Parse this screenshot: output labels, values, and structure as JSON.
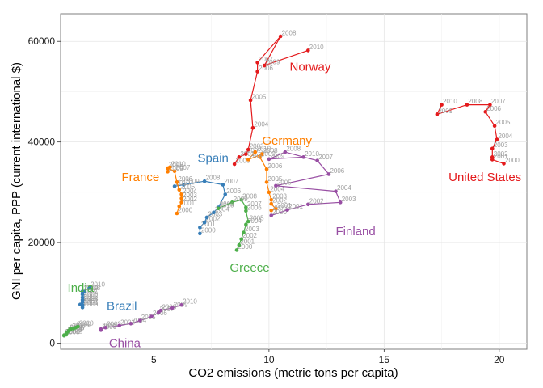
{
  "chart_data": {
    "type": "line",
    "xlabel": "CO2 emissions (metric tons per capita)",
    "ylabel": "GNI per capita, PPP (current international $)",
    "xlim": [
      0.95,
      21.2
    ],
    "ylim": [
      -1200,
      65500
    ],
    "x_ticks": [
      5,
      10,
      15,
      20
    ],
    "y_ticks": [
      0,
      20000,
      40000,
      60000
    ],
    "x_tick_labels": [
      "5",
      "10",
      "15",
      "20"
    ],
    "y_tick_labels": [
      "0",
      "20000",
      "40000",
      "60000"
    ],
    "grid": true,
    "series": [
      {
        "name": "United States",
        "color": "#E41A1C",
        "points": [
          {
            "year": "2000",
            "x": 20.2,
            "y": 35700
          },
          {
            "year": "2001",
            "x": 19.7,
            "y": 36500
          },
          {
            "year": "2002",
            "x": 19.7,
            "y": 37000
          },
          {
            "year": "2003",
            "x": 19.7,
            "y": 38700
          },
          {
            "year": "2004",
            "x": 19.9,
            "y": 40500
          },
          {
            "year": "2005",
            "x": 19.8,
            "y": 43200
          },
          {
            "year": "2006",
            "x": 19.4,
            "y": 46000
          },
          {
            "year": "2007",
            "x": 19.6,
            "y": 47400
          },
          {
            "year": "2008",
            "x": 18.6,
            "y": 47400
          },
          {
            "year": "2009",
            "x": 17.3,
            "y": 45500
          },
          {
            "year": "2010",
            "x": 17.5,
            "y": 47400
          }
        ]
      },
      {
        "name": "Norway",
        "color": "#E41A1C",
        "points": [
          {
            "year": "2000",
            "x": 8.5,
            "y": 35600
          },
          {
            "year": "2001",
            "x": 8.7,
            "y": 37000
          },
          {
            "year": "2002",
            "x": 9.0,
            "y": 37600
          },
          {
            "year": "2003",
            "x": 9.1,
            "y": 38500
          },
          {
            "year": "2004",
            "x": 9.3,
            "y": 42800
          },
          {
            "year": "2005",
            "x": 9.2,
            "y": 48300
          },
          {
            "year": "2006",
            "x": 9.5,
            "y": 54000
          },
          {
            "year": "2007",
            "x": 9.5,
            "y": 55800
          },
          {
            "year": "2008",
            "x": 10.5,
            "y": 61000
          },
          {
            "year": "2009",
            "x": 9.8,
            "y": 55200
          },
          {
            "year": "2010",
            "x": 11.7,
            "y": 58200
          }
        ]
      },
      {
        "name": "Germany",
        "color": "#FF7F00",
        "points": [
          {
            "year": "2000",
            "x": 10.1,
            "y": 26400
          },
          {
            "year": "2001",
            "x": 10.3,
            "y": 26700
          },
          {
            "year": "2002",
            "x": 10.1,
            "y": 27700
          },
          {
            "year": "2003",
            "x": 10.1,
            "y": 28500
          },
          {
            "year": "2004",
            "x": 10.0,
            "y": 30000
          },
          {
            "year": "2005",
            "x": 9.9,
            "y": 32000
          },
          {
            "year": "2006",
            "x": 9.9,
            "y": 34600
          },
          {
            "year": "2007",
            "x": 9.6,
            "y": 37000
          },
          {
            "year": "2008",
            "x": 9.7,
            "y": 37600
          },
          {
            "year": "2009",
            "x": 9.1,
            "y": 36500
          },
          {
            "year": "2010",
            "x": 9.4,
            "y": 38000
          }
        ]
      },
      {
        "name": "Finland",
        "color": "#984EA3",
        "points": [
          {
            "year": "2000",
            "x": 10.1,
            "y": 25400
          },
          {
            "year": "2001",
            "x": 10.8,
            "y": 26500
          },
          {
            "year": "2002",
            "x": 11.7,
            "y": 27600
          },
          {
            "year": "2003",
            "x": 13.1,
            "y": 28000
          },
          {
            "year": "2004",
            "x": 12.9,
            "y": 30200
          },
          {
            "year": "2005",
            "x": 10.3,
            "y": 31300
          },
          {
            "year": "2006",
            "x": 12.6,
            "y": 33600
          },
          {
            "year": "2007",
            "x": 12.1,
            "y": 36300
          },
          {
            "year": "2008",
            "x": 10.7,
            "y": 38000
          },
          {
            "year": "2009",
            "x": 10.0,
            "y": 36600
          },
          {
            "year": "2010",
            "x": 11.5,
            "y": 37000
          }
        ]
      },
      {
        "name": "Spain",
        "color": "#377EB8",
        "points": [
          {
            "year": "2000",
            "x": 7.0,
            "y": 21800
          },
          {
            "year": "2001",
            "x": 7.0,
            "y": 23000
          },
          {
            "year": "2002",
            "x": 7.2,
            "y": 24000
          },
          {
            "year": "2003",
            "x": 7.3,
            "y": 25000
          },
          {
            "year": "2004",
            "x": 7.6,
            "y": 26000
          },
          {
            "year": "2005",
            "x": 7.8,
            "y": 27000
          },
          {
            "year": "2006",
            "x": 8.1,
            "y": 29600
          },
          {
            "year": "2007",
            "x": 8.0,
            "y": 31500
          },
          {
            "year": "2008",
            "x": 7.2,
            "y": 32200
          },
          {
            "year": "2009",
            "x": 6.3,
            "y": 31500
          },
          {
            "year": "2010",
            "x": 5.9,
            "y": 31200
          }
        ]
      },
      {
        "name": "France",
        "color": "#FF7F00",
        "points": [
          {
            "year": "2000",
            "x": 6.0,
            "y": 25800
          },
          {
            "year": "2001",
            "x": 6.1,
            "y": 27200
          },
          {
            "year": "2002",
            "x": 6.2,
            "y": 28000
          },
          {
            "year": "2003",
            "x": 6.2,
            "y": 28800
          },
          {
            "year": "2004",
            "x": 6.2,
            "y": 29600
          },
          {
            "year": "2005",
            "x": 6.1,
            "y": 30500
          },
          {
            "year": "2006",
            "x": 6.0,
            "y": 32000
          },
          {
            "year": "2007",
            "x": 5.9,
            "y": 34200
          },
          {
            "year": "2008",
            "x": 5.6,
            "y": 34800
          },
          {
            "year": "2009",
            "x": 5.6,
            "y": 34100
          },
          {
            "year": "2010",
            "x": 5.7,
            "y": 35000
          }
        ]
      },
      {
        "name": "Greece",
        "color": "#4DAF4A",
        "points": [
          {
            "year": "2000",
            "x": 8.6,
            "y": 18500
          },
          {
            "year": "2001",
            "x": 8.7,
            "y": 19500
          },
          {
            "year": "2002",
            "x": 8.8,
            "y": 20700
          },
          {
            "year": "2003",
            "x": 8.9,
            "y": 22000
          },
          {
            "year": "2004",
            "x": 9.0,
            "y": 23600
          },
          {
            "year": "2005",
            "x": 9.1,
            "y": 24200
          },
          {
            "year": "2006",
            "x": 9.0,
            "y": 26300
          },
          {
            "year": "2007",
            "x": 9.0,
            "y": 27000
          },
          {
            "year": "2008",
            "x": 8.8,
            "y": 28500
          },
          {
            "year": "2009",
            "x": 8.4,
            "y": 28000
          },
          {
            "year": "2010",
            "x": 7.8,
            "y": 26800
          }
        ]
      },
      {
        "name": "Brazil",
        "color": "#377EB8",
        "points": [
          {
            "year": "2000",
            "x": 1.9,
            "y": 7100
          },
          {
            "year": "2001",
            "x": 1.9,
            "y": 7400
          },
          {
            "year": "2002",
            "x": 1.9,
            "y": 7600
          },
          {
            "year": "2003",
            "x": 1.8,
            "y": 7700
          },
          {
            "year": "2004",
            "x": 1.9,
            "y": 8200
          },
          {
            "year": "2005",
            "x": 1.9,
            "y": 8600
          },
          {
            "year": "2006",
            "x": 1.9,
            "y": 9100
          },
          {
            "year": "2007",
            "x": 1.9,
            "y": 9700
          },
          {
            "year": "2008",
            "x": 2.0,
            "y": 10300
          },
          {
            "year": "2009",
            "x": 1.9,
            "y": 10300
          },
          {
            "year": "2010",
            "x": 2.2,
            "y": 11000
          }
        ]
      },
      {
        "name": "China",
        "color": "#984EA3",
        "points": [
          {
            "year": "2000",
            "x": 2.7,
            "y": 2600
          },
          {
            "year": "2001",
            "x": 2.7,
            "y": 2800
          },
          {
            "year": "2002",
            "x": 2.9,
            "y": 3100
          },
          {
            "year": "2003",
            "x": 3.5,
            "y": 3500
          },
          {
            "year": "2004",
            "x": 4.0,
            "y": 3900
          },
          {
            "year": "2005",
            "x": 4.4,
            "y": 4500
          },
          {
            "year": "2006",
            "x": 4.9,
            "y": 5300
          },
          {
            "year": "2007",
            "x": 5.2,
            "y": 6100
          },
          {
            "year": "2008",
            "x": 5.3,
            "y": 6500
          },
          {
            "year": "2009",
            "x": 5.8,
            "y": 7000
          },
          {
            "year": "2010",
            "x": 6.2,
            "y": 7600
          }
        ]
      },
      {
        "name": "India",
        "color": "#4DAF4A",
        "points": [
          {
            "year": "2000",
            "x": 1.1,
            "y": 1500
          },
          {
            "year": "2001",
            "x": 1.1,
            "y": 1600
          },
          {
            "year": "2002",
            "x": 1.2,
            "y": 1700
          },
          {
            "year": "2003",
            "x": 1.2,
            "y": 1900
          },
          {
            "year": "2004",
            "x": 1.2,
            "y": 2100
          },
          {
            "year": "2005",
            "x": 1.3,
            "y": 2300
          },
          {
            "year": "2006",
            "x": 1.3,
            "y": 2500
          },
          {
            "year": "2007",
            "x": 1.4,
            "y": 2800
          },
          {
            "year": "2008",
            "x": 1.5,
            "y": 2900
          },
          {
            "year": "2009",
            "x": 1.6,
            "y": 3100
          },
          {
            "year": "2010",
            "x": 1.7,
            "y": 3300
          }
        ]
      }
    ],
    "country_labels": [
      {
        "name": "India",
        "color": "#4DAF4A",
        "x": 1.25,
        "y": 11000
      },
      {
        "name": "Brazil",
        "color": "#377EB8",
        "x": 2.95,
        "y": 7400
      },
      {
        "name": "China",
        "color": "#984EA3",
        "x": 3.05,
        "y": 0
      },
      {
        "name": "France",
        "color": "#FF7F00",
        "x": 3.6,
        "y": 33000
      },
      {
        "name": "Spain",
        "color": "#377EB8",
        "x": 6.9,
        "y": 36800
      },
      {
        "name": "Greece",
        "color": "#4DAF4A",
        "x": 8.3,
        "y": 15000
      },
      {
        "name": "Germany",
        "color": "#FF7F00",
        "x": 9.7,
        "y": 40300
      },
      {
        "name": "Norway",
        "color": "#E41A1C",
        "x": 10.9,
        "y": 55000
      },
      {
        "name": "Finland",
        "color": "#984EA3",
        "x": 12.9,
        "y": 22300
      },
      {
        "name": "United States",
        "color": "#E41A1C",
        "x": 17.8,
        "y": 33000
      }
    ]
  }
}
